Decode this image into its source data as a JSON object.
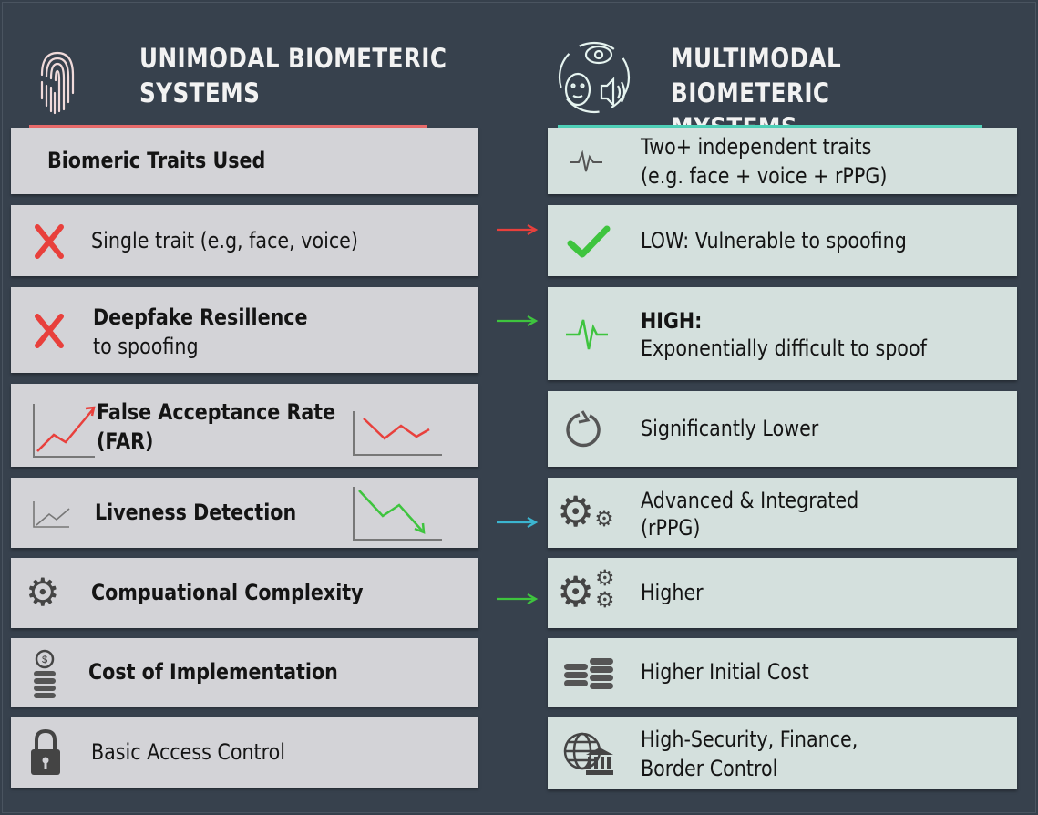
{
  "left": {
    "title_line1": "UNIMODAL BIOMETERIC",
    "title_line2": "SYSTEMS",
    "accent": "#e86a6a",
    "rows": [
      {
        "label": "Biomeric Traits Used"
      },
      {
        "label": "Single trait (e.g, face, voice)",
        "icon": "x-mark-icon"
      },
      {
        "label": "Deepfake Resillence",
        "sub": "to spoofing",
        "icon": "x-mark-icon"
      },
      {
        "label": "False Acceptance Rate",
        "sub": "(FAR)",
        "icon": "trend-up-chart-icon"
      },
      {
        "label": "Liveness Detection",
        "icon": "trend-chart-icon"
      },
      {
        "label": "Compuational Complexity",
        "icon": "gear-icon"
      },
      {
        "label": "Cost of Implementation",
        "icon": "coins-icon"
      },
      {
        "label": "Basic Access Control",
        "icon": "lock-icon"
      }
    ]
  },
  "right": {
    "title_line1": "MULTIMODAL BIOMETERIC",
    "title_line2": "MYSTEMS",
    "accent": "#4fd1b8",
    "rows": [
      {
        "label": "Two+ independent traits",
        "sub": "(e.g. face + voice + rPPG)",
        "icon": "pulse-icon"
      },
      {
        "label": "LOW: Vulnerable to spoofing",
        "icon": "check-icon"
      },
      {
        "label": "HIGH:",
        "sub": "Exponentially difficult to spoof",
        "icon": "pulse-icon"
      },
      {
        "label": "Significantly Lower",
        "icon": "refresh-icon"
      },
      {
        "label": "Advanced & Integrated",
        "sub": "(rPPG)",
        "icon": "gears-icon"
      },
      {
        "label": "Higher",
        "icon": "gears-icon"
      },
      {
        "label": "Higher Initial Cost",
        "icon": "coins-icon"
      },
      {
        "label": "High-Security, Finance,",
        "sub": "Border Control",
        "icon": "globe-bank-icon"
      }
    ]
  },
  "colors": {
    "red": "#e8403c",
    "green": "#3ec43e",
    "cyan": "#3bb5d0",
    "background": "#36404c"
  }
}
